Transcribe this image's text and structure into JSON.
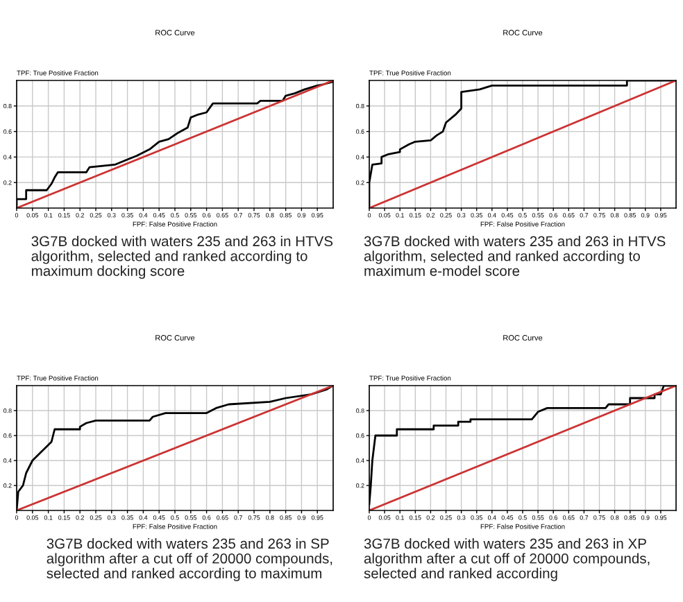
{
  "chart_data": [
    {
      "type": "line",
      "title": "ROC Curve",
      "xlabel": "FPF: False Positive Fraction",
      "ylabel": "TPF: True Positive Fraction",
      "xlim": [
        0,
        1
      ],
      "ylim": [
        0,
        1
      ],
      "xticks": [
        0,
        0.05,
        0.1,
        0.15,
        0.2,
        0.25,
        0.3,
        0.35,
        0.4,
        0.45,
        0.5,
        0.55,
        0.6,
        0.65,
        0.7,
        0.75,
        0.8,
        0.85,
        0.9,
        0.95
      ],
      "yticks": [
        0.2,
        0.4,
        0.6,
        0.8
      ],
      "grid": true,
      "series": [
        {
          "color": "#000000",
          "x": [
            0,
            0,
            0.03,
            0.03,
            0.095,
            0.11,
            0.12,
            0.13,
            0.22,
            0.23,
            0.31,
            0.35,
            0.38,
            0.42,
            0.45,
            0.48,
            0.51,
            0.54,
            0.55,
            0.57,
            0.6,
            0.62,
            0.76,
            0.77,
            0.84,
            0.85,
            0.88,
            0.91,
            0.95,
            0.97,
            1
          ],
          "values": [
            0,
            0.07,
            0.07,
            0.14,
            0.14,
            0.19,
            0.24,
            0.28,
            0.28,
            0.32,
            0.34,
            0.38,
            0.41,
            0.46,
            0.52,
            0.54,
            0.59,
            0.63,
            0.71,
            0.73,
            0.75,
            0.82,
            0.82,
            0.84,
            0.84,
            0.88,
            0.9,
            0.93,
            0.96,
            0.97,
            0.99
          ]
        },
        {
          "color": "#cc3333",
          "x": [
            0,
            1
          ],
          "values": [
            0,
            1
          ]
        }
      ],
      "annotations": [
        "3G7B docked with waters 235 and 263 in HTVS algorithm, selected and ranked according to maximum docking score"
      ]
    },
    {
      "type": "line",
      "title": "ROC Curve",
      "xlabel": "FPF: False Positive Fraction",
      "ylabel": "TPF: True Positive Fraction",
      "xlim": [
        0,
        1
      ],
      "ylim": [
        0,
        1
      ],
      "xticks": [
        0,
        0.05,
        0.1,
        0.15,
        0.2,
        0.25,
        0.3,
        0.35,
        0.4,
        0.45,
        0.5,
        0.55,
        0.6,
        0.65,
        0.7,
        0.75,
        0.8,
        0.85,
        0.9,
        0.95
      ],
      "yticks": [
        0.2,
        0.4,
        0.6,
        0.8
      ],
      "grid": true,
      "series": [
        {
          "color": "#000000",
          "x": [
            0,
            0,
            0.01,
            0.04,
            0.04,
            0.06,
            0.1,
            0.1,
            0.13,
            0.15,
            0.2,
            0.22,
            0.24,
            0.25,
            0.28,
            0.3,
            0.3,
            0.36,
            0.4,
            0.84,
            0.84,
            1
          ],
          "values": [
            0,
            0.2,
            0.34,
            0.35,
            0.4,
            0.42,
            0.44,
            0.46,
            0.5,
            0.52,
            0.53,
            0.57,
            0.6,
            0.67,
            0.73,
            0.78,
            0.91,
            0.93,
            0.96,
            0.96,
            1,
            1
          ]
        },
        {
          "color": "#cc3333",
          "x": [
            0,
            1
          ],
          "values": [
            0,
            1
          ]
        }
      ],
      "annotations": [
        "3G7B docked with waters 235 and 263 in HTVS algorithm, selected and ranked according to maximum e-model score"
      ]
    },
    {
      "type": "line",
      "title": "ROC Curve",
      "xlabel": "FPF: False Positive Fraction",
      "ylabel": "TPF: True Positive Fraction",
      "xlim": [
        0,
        1
      ],
      "ylim": [
        0,
        1
      ],
      "xticks": [
        0,
        0.05,
        0.1,
        0.15,
        0.2,
        0.25,
        0.3,
        0.35,
        0.4,
        0.45,
        0.5,
        0.55,
        0.6,
        0.65,
        0.7,
        0.75,
        0.8,
        0.85,
        0.9,
        0.95
      ],
      "yticks": [
        0.2,
        0.4,
        0.6,
        0.8
      ],
      "grid": true,
      "series": [
        {
          "color": "#000000",
          "x": [
            0,
            0.005,
            0.02,
            0.03,
            0.04,
            0.05,
            0.07,
            0.09,
            0.11,
            0.12,
            0.2,
            0.2,
            0.22,
            0.25,
            0.42,
            0.43,
            0.47,
            0.6,
            0.63,
            0.67,
            0.8,
            0.85,
            0.93,
            0.98,
            1
          ],
          "values": [
            0,
            0.15,
            0.2,
            0.3,
            0.35,
            0.4,
            0.45,
            0.5,
            0.55,
            0.65,
            0.65,
            0.67,
            0.7,
            0.72,
            0.72,
            0.75,
            0.78,
            0.78,
            0.82,
            0.85,
            0.87,
            0.9,
            0.93,
            0.97,
            1
          ]
        },
        {
          "color": "#cc3333",
          "x": [
            0,
            1
          ],
          "values": [
            0,
            1
          ]
        }
      ],
      "annotations": [
        "3G7B docked with waters 235 and 263 in SP algorithm after a cut off of 20000 compounds, selected and ranked according to maximum"
      ]
    },
    {
      "type": "line",
      "title": "ROC Curve",
      "xlabel": "FPF: False Positive Fraction",
      "ylabel": "TPF: True Positive Fraction",
      "xlim": [
        0,
        1
      ],
      "ylim": [
        0,
        1
      ],
      "xticks": [
        0,
        0.05,
        0.1,
        0.15,
        0.2,
        0.25,
        0.3,
        0.35,
        0.4,
        0.45,
        0.5,
        0.55,
        0.6,
        0.65,
        0.7,
        0.75,
        0.8,
        0.85,
        0.9,
        0.95
      ],
      "yticks": [
        0.2,
        0.4,
        0.6,
        0.8
      ],
      "grid": true,
      "series": [
        {
          "color": "#000000",
          "x": [
            0,
            0.005,
            0.01,
            0.015,
            0.02,
            0.09,
            0.09,
            0.21,
            0.21,
            0.29,
            0.29,
            0.33,
            0.33,
            0.53,
            0.55,
            0.58,
            0.77,
            0.78,
            0.85,
            0.85,
            0.93,
            0.93,
            0.95,
            0.96,
            1
          ],
          "values": [
            0.05,
            0.2,
            0.4,
            0.5,
            0.6,
            0.6,
            0.65,
            0.65,
            0.68,
            0.68,
            0.71,
            0.71,
            0.73,
            0.73,
            0.79,
            0.82,
            0.82,
            0.85,
            0.85,
            0.9,
            0.9,
            0.93,
            0.93,
            1,
            1
          ]
        },
        {
          "color": "#cc3333",
          "x": [
            0,
            1
          ],
          "values": [
            0,
            1
          ]
        }
      ],
      "annotations": [
        "3G7B docked with waters 235 and 263 in XP algorithm after a cut off of 20000 compounds, selected and ranked according"
      ]
    }
  ]
}
